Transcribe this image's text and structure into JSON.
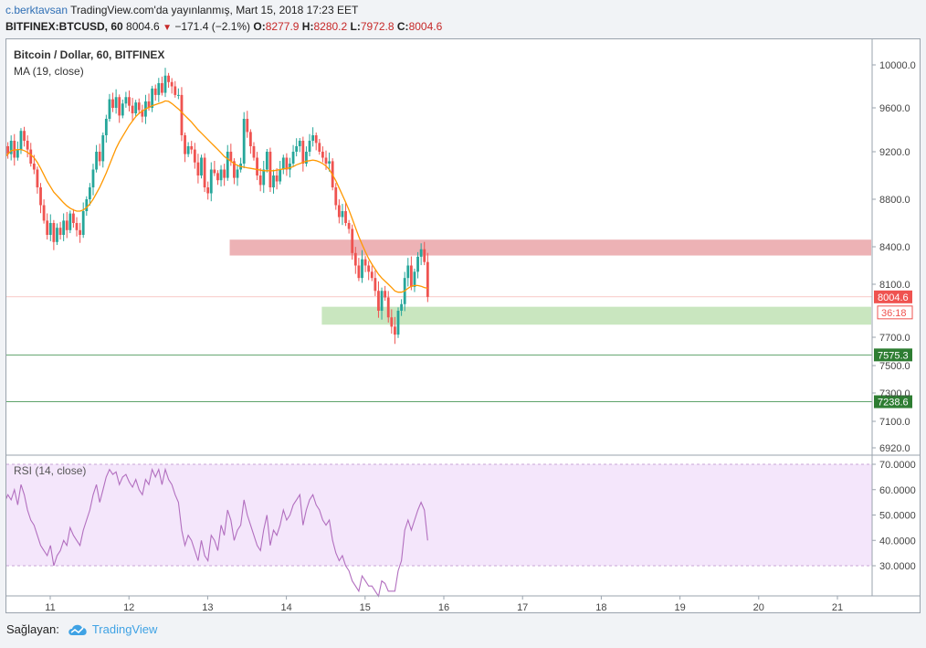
{
  "header": {
    "user": "c.berktavsan",
    "published": "TradingView.com'da yayınlanmış, Mart 15, 2018 17:23 EET",
    "symbol": "BITFINEX:BTCUSD, 60",
    "last": "8004.6",
    "change": "−171.4 (−2.1%)",
    "ohlc": [
      {
        "label": "O:",
        "value": "8277.9"
      },
      {
        "label": "H:",
        "value": "8280.2"
      },
      {
        "label": "L:",
        "value": "7972.8"
      },
      {
        "label": "C:",
        "value": "8004.6"
      }
    ]
  },
  "colors": {
    "up": "#26a69a",
    "down": "#ef5350",
    "ma": "#ff9800",
    "rsi": "#b26fbf",
    "resistance_zone": "#eaa5a8",
    "support_zone": "#bfe2b4",
    "level_line": "#5fa36b",
    "level_label": "#2e7d32",
    "price_label": "#ef5350"
  },
  "chart_data": [
    {
      "type": "candlestick",
      "title": "Bitcoin / Dollar, 60, BITFINEX",
      "indicator": "MA (19, close)",
      "x_ticks": [
        "11",
        "12",
        "13",
        "14",
        "15",
        "16",
        "17",
        "18",
        "19",
        "20",
        "21"
      ],
      "y_ticks": [
        "10000.0",
        "9600.0",
        "9200.0",
        "8800.0",
        "8400.0",
        "8100.0",
        "7700.0",
        "7500.0",
        "7300.0",
        "7100.0",
        "6920.0"
      ],
      "y_tick_values": [
        10000,
        9600,
        9200,
        8800,
        8400,
        8100,
        7700,
        7500,
        7300,
        7100,
        6920
      ],
      "y_range": [
        6920,
        10000
      ],
      "x_range_days": [
        10.4,
        21.45
      ],
      "price_label": "8004.6",
      "countdown_label": "36:18",
      "horizontal_levels": [
        {
          "value": 7575.3,
          "label": "7575.3"
        },
        {
          "value": 7238.6,
          "label": "7238.6"
        }
      ],
      "zones": [
        {
          "type": "resistance",
          "from_day": 13.28,
          "to_day": 21.45,
          "low": 8330,
          "high": 8460
        },
        {
          "type": "support",
          "from_day": 14.45,
          "to_day": 21.45,
          "low": 7795,
          "high": 7930
        }
      ],
      "series_hourly": {
        "start_day": 10.42,
        "close": [
          9250,
          9180,
          9300,
          9150,
          9220,
          9390,
          9300,
          9220,
          9100,
          9050,
          8900,
          8750,
          8620,
          8500,
          8600,
          8440,
          8560,
          8500,
          8620,
          8540,
          8680,
          8600,
          8540,
          8500,
          8700,
          8800,
          8900,
          9050,
          9200,
          9120,
          9350,
          9500,
          9680,
          9600,
          9700,
          9530,
          9640,
          9700,
          9620,
          9550,
          9650,
          9580,
          9520,
          9660,
          9600,
          9780,
          9720,
          9830,
          9740,
          9900,
          9840,
          9800,
          9720,
          9720,
          9350,
          9180,
          9250,
          9220,
          9110,
          9000,
          9150,
          8900,
          8850,
          9050,
          9020,
          8960,
          9050,
          8980,
          9200,
          9120,
          8980,
          9050,
          9100,
          9500,
          9380,
          9250,
          9150,
          9000,
          8920,
          9050,
          9200,
          8900,
          9000,
          8950,
          9050,
          9150,
          9050,
          9100,
          9200,
          9250,
          9300,
          9100,
          9200,
          9300,
          9350,
          9280,
          9200,
          9150,
          9100,
          9120,
          8900,
          8750,
          8650,
          8700,
          8600,
          8550,
          8350,
          8250,
          8150,
          8300,
          8250,
          8200,
          8150,
          8050,
          7900,
          8050,
          8000,
          7850,
          7780,
          7720,
          7900,
          7950,
          8150,
          8250,
          8080,
          8200,
          8320,
          8380,
          8277.9,
          8004.6
        ],
        "ma19": [
          9150,
          9180,
          9210,
          9215,
          9220,
          9220,
          9210,
          9195,
          9175,
          9150,
          9110,
          9060,
          9005,
          8950,
          8905,
          8860,
          8830,
          8800,
          8770,
          8745,
          8725,
          8710,
          8700,
          8700,
          8710,
          8730,
          8760,
          8800,
          8850,
          8900,
          8960,
          9020,
          9090,
          9160,
          9230,
          9290,
          9340,
          9390,
          9440,
          9480,
          9520,
          9550,
          9570,
          9590,
          9605,
          9620,
          9630,
          9640,
          9650,
          9665,
          9660,
          9640,
          9615,
          9590,
          9560,
          9530,
          9500,
          9470,
          9435,
          9400,
          9370,
          9340,
          9310,
          9280,
          9250,
          9220,
          9190,
          9160,
          9140,
          9120,
          9100,
          9085,
          9075,
          9070,
          9065,
          9060,
          9055,
          9050,
          9045,
          9040,
          9040,
          9040,
          9040,
          9045,
          9050,
          9055,
          9060,
          9065,
          9075,
          9090,
          9100,
          9110,
          9120,
          9125,
          9130,
          9125,
          9115,
          9100,
          9080,
          9050,
          9005,
          8955,
          8895,
          8835,
          8775,
          8710,
          8635,
          8560,
          8485,
          8420,
          8360,
          8305,
          8260,
          8220,
          8180,
          8150,
          8125,
          8100,
          8075,
          8050,
          8040,
          8040,
          8050,
          8070,
          8085,
          8090,
          8090,
          8085,
          8075,
          8070
        ]
      }
    },
    {
      "type": "line",
      "indicator": "RSI (14, close)",
      "y_ticks": [
        "70.0000",
        "60.0000",
        "50.0000",
        "40.0000",
        "30.0000"
      ],
      "y_tick_values": [
        70,
        60,
        50,
        40,
        30
      ],
      "band": [
        30,
        70
      ],
      "y_range": [
        18,
        72
      ],
      "series_hourly": {
        "start_day": 10.42,
        "values": [
          55,
          58,
          56,
          60,
          54,
          62,
          58,
          52,
          48,
          46,
          42,
          38,
          36,
          34,
          38,
          30,
          34,
          36,
          40,
          38,
          45,
          42,
          40,
          38,
          44,
          48,
          52,
          58,
          62,
          55,
          60,
          65,
          68,
          66,
          67,
          62,
          65,
          66,
          63,
          61,
          64,
          60,
          58,
          64,
          62,
          68,
          65,
          68,
          62,
          68,
          64,
          62,
          58,
          55,
          44,
          38,
          42,
          40,
          36,
          32,
          40,
          34,
          32,
          42,
          40,
          36,
          46,
          42,
          52,
          48,
          40,
          44,
          46,
          56,
          50,
          46,
          42,
          38,
          36,
          44,
          50,
          38,
          44,
          42,
          46,
          52,
          48,
          50,
          54,
          56,
          58,
          46,
          52,
          56,
          58,
          54,
          52,
          48,
          46,
          48,
          40,
          35,
          32,
          34,
          30,
          28,
          24,
          22,
          20,
          26,
          24,
          22,
          22,
          20,
          18,
          24,
          23,
          20,
          20,
          20,
          28,
          32,
          44,
          48,
          44,
          48,
          52,
          55,
          52,
          40
        ]
      }
    }
  ],
  "footer": {
    "credit_label": "Sağlayan:",
    "brand": "TradingView"
  }
}
